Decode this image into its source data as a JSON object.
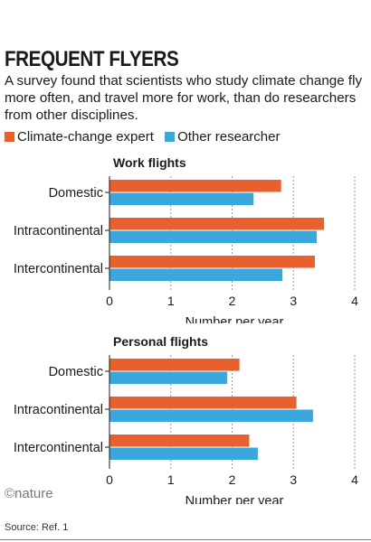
{
  "header": {
    "title": "FREQUENT FLYERS",
    "subtitle": "A survey found that scientists who study climate change fly more often, and travel more for work, than do researchers from other disciplines."
  },
  "legend": [
    {
      "label": "Climate-change expert",
      "color": "#e8602c"
    },
    {
      "label": "Other researcher",
      "color": "#3aa8dc"
    }
  ],
  "chart_data": [
    {
      "type": "bar",
      "orientation": "horizontal",
      "title": "Work flights",
      "categories": [
        "Domestic",
        "Intracontinental",
        "Intercontinental"
      ],
      "series": [
        {
          "name": "Climate-change expert",
          "color": "#e8602c",
          "values": [
            2.8,
            3.5,
            3.35
          ]
        },
        {
          "name": "Other researcher",
          "color": "#3aa8dc",
          "values": [
            2.35,
            3.38,
            2.82
          ]
        }
      ],
      "xlabel": "Number per year",
      "xlim": [
        0,
        4
      ],
      "xticks": [
        "0",
        "1",
        "2",
        "3",
        "4"
      ],
      "grid": true
    },
    {
      "type": "bar",
      "orientation": "horizontal",
      "title": "Personal flights",
      "categories": [
        "Domestic",
        "Intracontinental",
        "Intercontinental"
      ],
      "series": [
        {
          "name": "Climate-change expert",
          "color": "#e8602c",
          "values": [
            2.12,
            3.05,
            2.28
          ]
        },
        {
          "name": "Other researcher",
          "color": "#3aa8dc",
          "values": [
            1.92,
            3.32,
            2.42
          ]
        }
      ],
      "xlabel": "Number per year",
      "xlim": [
        0,
        4
      ],
      "xticks": [
        "0",
        "1",
        "2",
        "3",
        "4"
      ],
      "grid": true
    }
  ],
  "footer": {
    "credit": "©nature",
    "source": "Source: Ref. 1"
  }
}
